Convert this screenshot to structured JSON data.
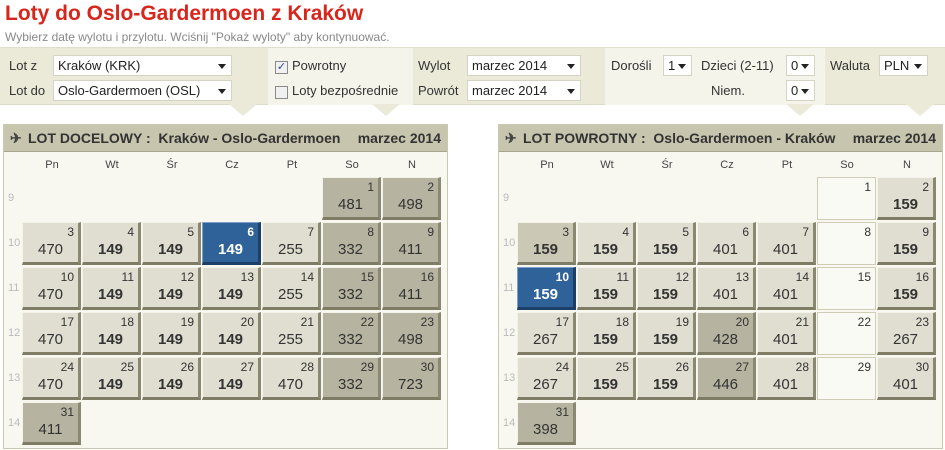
{
  "title": "Loty do Oslo-Gardermoen z Kraków",
  "subtitle": "Wybierz datę wylotu i przylotu. Wciśnij \"Pokaż wyloty\" aby kontynuować.",
  "form": {
    "from_label": "Lot z",
    "from_value": "Kraków (KRK)",
    "to_label": "Lot do",
    "to_value": "Oslo-Gardermoen (OSL)",
    "return_label": "Powrotny",
    "return_checked": true,
    "direct_label": "Loty bezpośrednie",
    "direct_checked": false,
    "depart_label": "Wylot",
    "depart_value": "marzec 2014",
    "back_label": "Powrót",
    "back_value": "marzec 2014",
    "adults_label": "Dorośli",
    "adults_value": "1",
    "children_label": "Dzieci (2-11)",
    "children_value": "0",
    "infants_label": "Niem.",
    "infants_value": "0",
    "currency_label": "Waluta",
    "currency_value": "PLN"
  },
  "days": [
    "Pn",
    "Wt",
    "Śr",
    "Cz",
    "Pt",
    "So",
    "N"
  ],
  "weeks": [
    "9",
    "10",
    "11",
    "12",
    "13",
    "14"
  ],
  "first_weekday_offset": 5,
  "outbound": {
    "label": "LOT DOCELOWY :",
    "route": "Kraków - Oslo-Gardermoen",
    "month": "marzec 2014",
    "cells": [
      [
        "481",
        "exp"
      ],
      [
        "498",
        "exp"
      ],
      [
        "470",
        ""
      ],
      [
        "149",
        "cheap"
      ],
      [
        "149",
        "cheap"
      ],
      [
        "149",
        "sel"
      ],
      [
        "255",
        ""
      ],
      [
        "332",
        "exp"
      ],
      [
        "411",
        "exp"
      ],
      [
        "470",
        ""
      ],
      [
        "149",
        "cheap"
      ],
      [
        "149",
        "cheap"
      ],
      [
        "149",
        "cheap"
      ],
      [
        "255",
        ""
      ],
      [
        "332",
        "exp"
      ],
      [
        "411",
        "exp"
      ],
      [
        "470",
        ""
      ],
      [
        "149",
        "cheap"
      ],
      [
        "149",
        "cheap"
      ],
      [
        "149",
        "cheap"
      ],
      [
        "255",
        ""
      ],
      [
        "332",
        "exp"
      ],
      [
        "498",
        "exp"
      ],
      [
        "470",
        ""
      ],
      [
        "149",
        "cheap"
      ],
      [
        "149",
        "cheap"
      ],
      [
        "149",
        "cheap"
      ],
      [
        "470",
        ""
      ],
      [
        "332",
        "exp"
      ],
      [
        "723",
        "exp"
      ],
      [
        "411",
        "exp"
      ]
    ]
  },
  "return": {
    "label": "LOT POWROTNY :",
    "route": "Oslo-Gardermoen - Kraków",
    "month": "marzec 2014",
    "cells": [
      [
        "",
        "empty"
      ],
      [
        "159",
        "cheap"
      ],
      [
        "159",
        "cheap hov"
      ],
      [
        "159",
        "cheap"
      ],
      [
        "159",
        "cheap"
      ],
      [
        "401",
        ""
      ],
      [
        "401",
        ""
      ],
      [
        "",
        "empty"
      ],
      [
        "159",
        "cheap"
      ],
      [
        "159",
        "sel"
      ],
      [
        "159",
        "cheap"
      ],
      [
        "159",
        "cheap"
      ],
      [
        "401",
        ""
      ],
      [
        "401",
        ""
      ],
      [
        "",
        "empty"
      ],
      [
        "159",
        "cheap"
      ],
      [
        "267",
        ""
      ],
      [
        "159",
        "cheap"
      ],
      [
        "159",
        "cheap"
      ],
      [
        "428",
        "exp"
      ],
      [
        "401",
        ""
      ],
      [
        "",
        "empty"
      ],
      [
        "267",
        ""
      ],
      [
        "267",
        ""
      ],
      [
        "159",
        "cheap"
      ],
      [
        "159",
        "cheap"
      ],
      [
        "446",
        "exp"
      ],
      [
        "401",
        ""
      ],
      [
        "",
        "empty"
      ],
      [
        "401",
        ""
      ],
      [
        "398",
        "exp"
      ]
    ]
  }
}
